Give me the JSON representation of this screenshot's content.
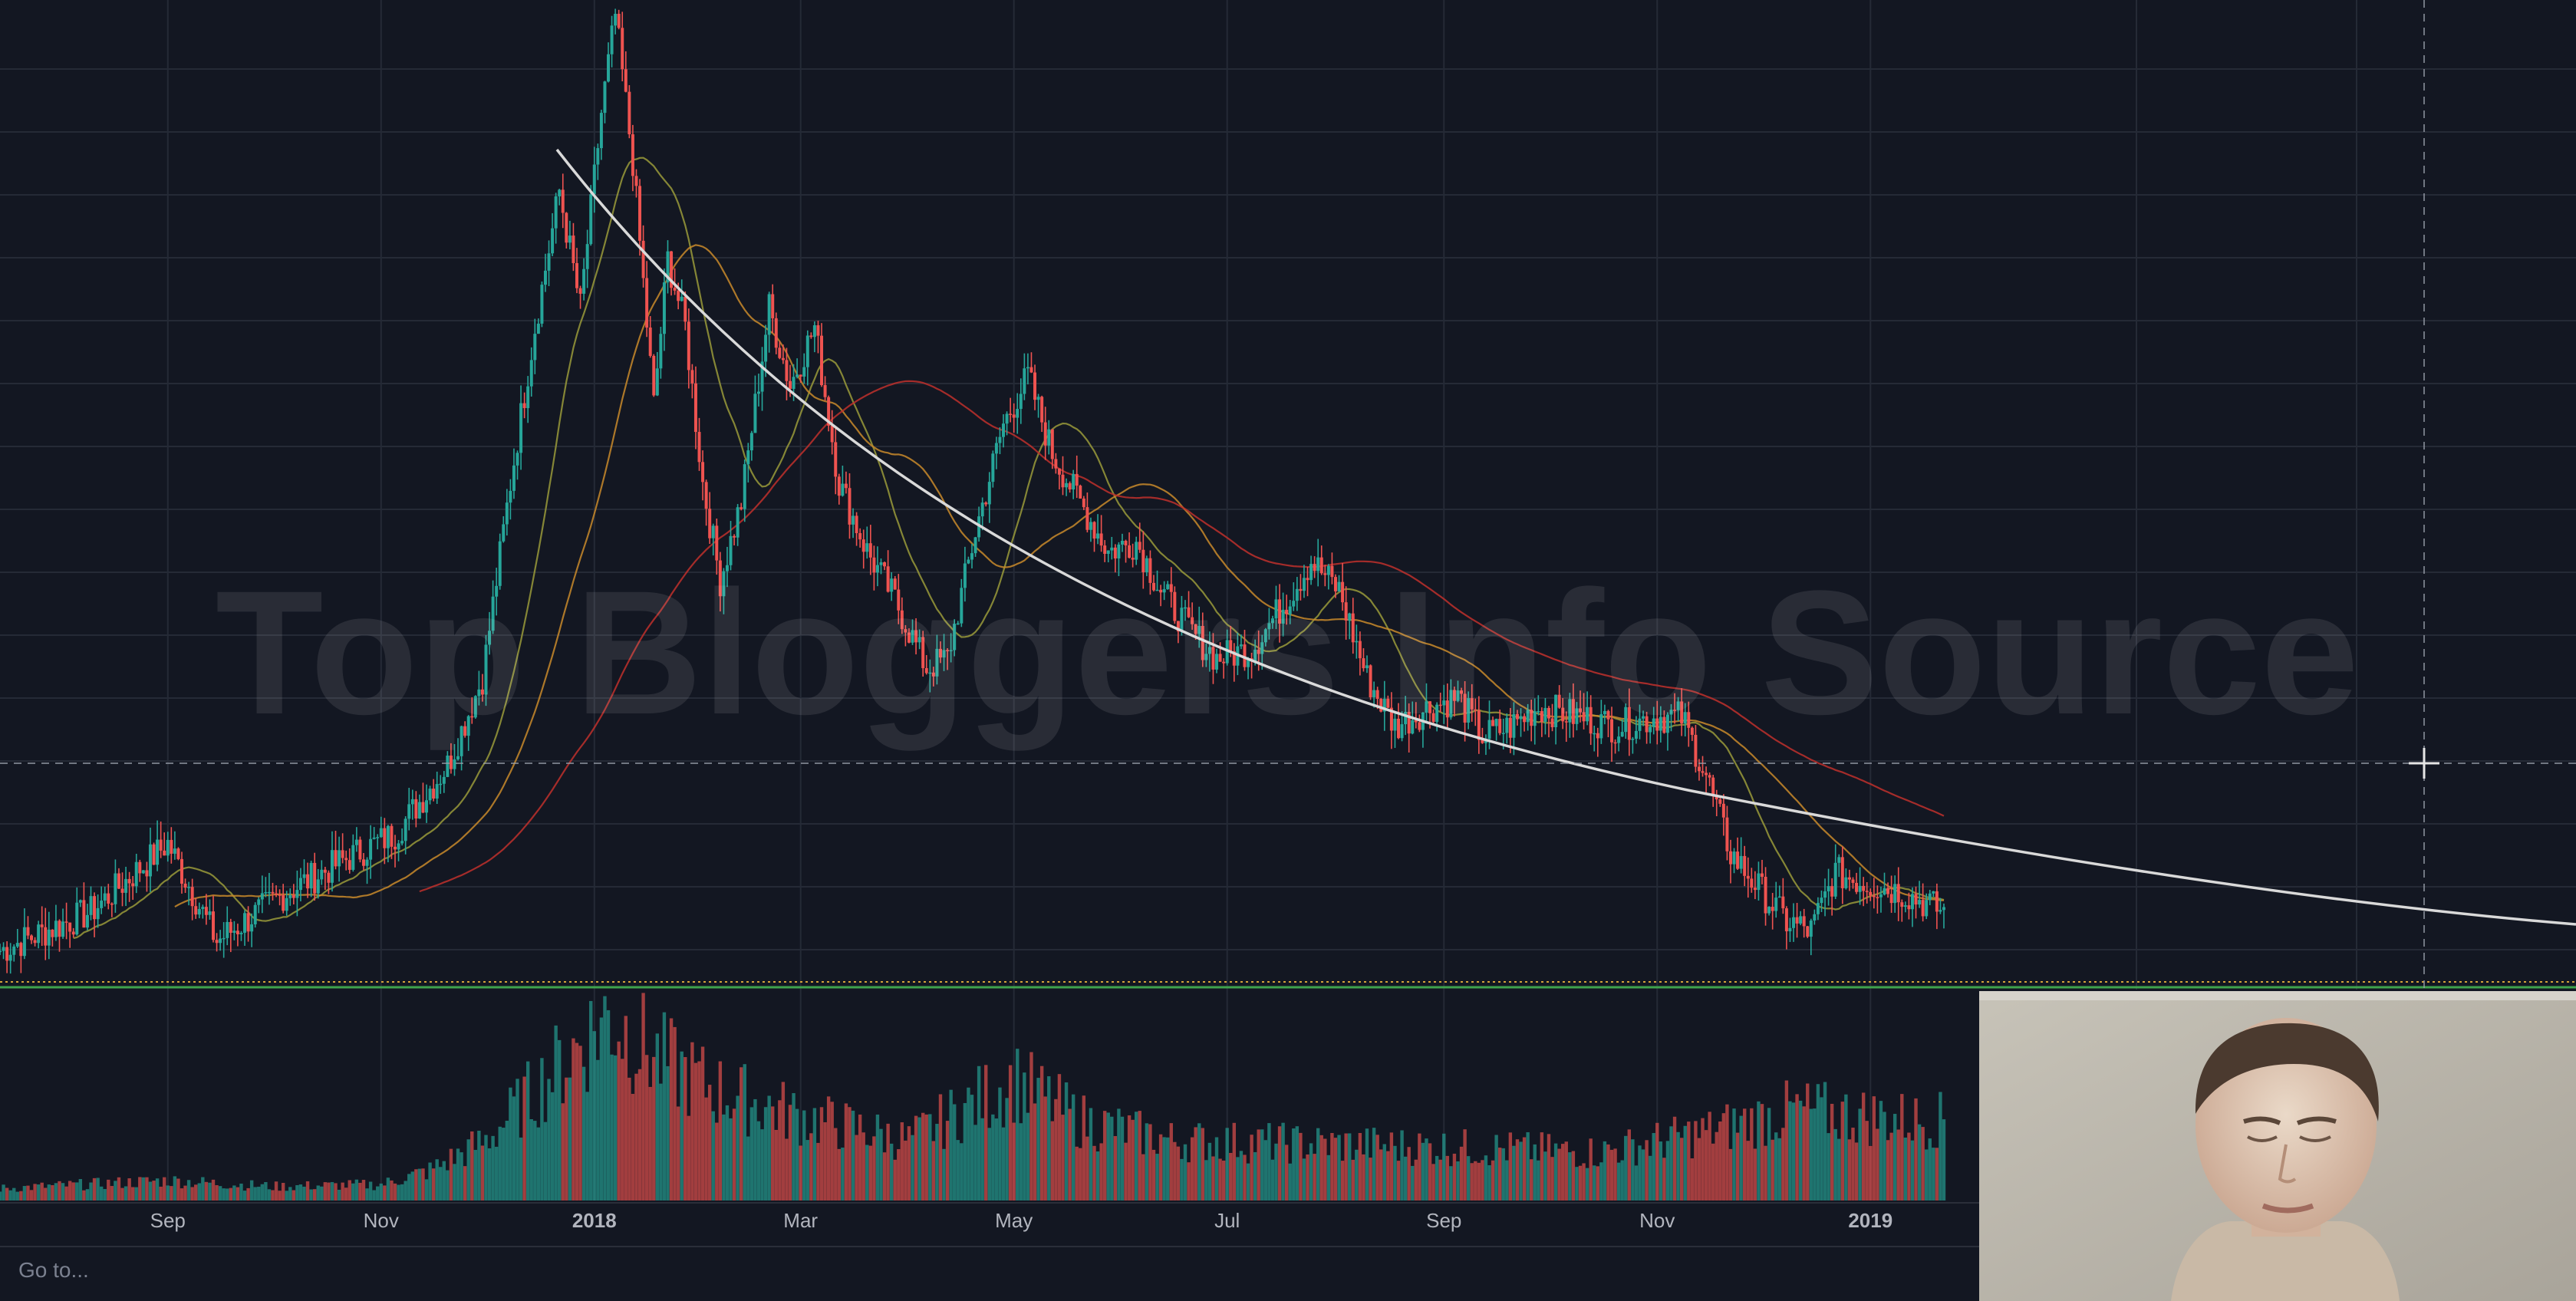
{
  "chart_data": {
    "type": "candlestick",
    "x_tick_labels": [
      "Sep",
      "Nov",
      "2018",
      "Mar",
      "May",
      "Jul",
      "Sep",
      "Nov",
      "2019"
    ],
    "price_path": [
      [
        "2017-07-15",
        0.04
      ],
      [
        "2017-08-10",
        0.08
      ],
      [
        "2017-09-01",
        0.15
      ],
      [
        "2017-09-15",
        0.05
      ],
      [
        "2017-10-05",
        0.1
      ],
      [
        "2017-10-25",
        0.14
      ],
      [
        "2017-11-05",
        0.16
      ],
      [
        "2017-11-20",
        0.23
      ],
      [
        "2017-11-30",
        0.32
      ],
      [
        "2017-12-08",
        0.52
      ],
      [
        "2017-12-15",
        0.68
      ],
      [
        "2017-12-22",
        0.82
      ],
      [
        "2017-12-28",
        0.7
      ],
      [
        "2018-01-03",
        0.9
      ],
      [
        "2018-01-07",
        1.0
      ],
      [
        "2018-01-12",
        0.85
      ],
      [
        "2018-01-18",
        0.6
      ],
      [
        "2018-01-22",
        0.75
      ],
      [
        "2018-01-27",
        0.68
      ],
      [
        "2018-02-01",
        0.52
      ],
      [
        "2018-02-06",
        0.42
      ],
      [
        "2018-02-12",
        0.5
      ],
      [
        "2018-02-20",
        0.7
      ],
      [
        "2018-02-26",
        0.62
      ],
      [
        "2018-03-05",
        0.68
      ],
      [
        "2018-03-12",
        0.52
      ],
      [
        "2018-03-20",
        0.45
      ],
      [
        "2018-03-28",
        0.4
      ],
      [
        "2018-04-06",
        0.33
      ],
      [
        "2018-04-12",
        0.34
      ],
      [
        "2018-04-20",
        0.47
      ],
      [
        "2018-04-28",
        0.58
      ],
      [
        "2018-05-05",
        0.63
      ],
      [
        "2018-05-12",
        0.55
      ],
      [
        "2018-05-20",
        0.5
      ],
      [
        "2018-05-28",
        0.45
      ],
      [
        "2018-06-05",
        0.46
      ],
      [
        "2018-06-12",
        0.41
      ],
      [
        "2018-06-20",
        0.37
      ],
      [
        "2018-06-28",
        0.34
      ],
      [
        "2018-07-08",
        0.35
      ],
      [
        "2018-07-18",
        0.4
      ],
      [
        "2018-07-25",
        0.44
      ],
      [
        "2018-08-02",
        0.41
      ],
      [
        "2018-08-10",
        0.32
      ],
      [
        "2018-08-18",
        0.27
      ],
      [
        "2018-08-28",
        0.29
      ],
      [
        "2018-09-05",
        0.3
      ],
      [
        "2018-09-12",
        0.26
      ],
      [
        "2018-09-20",
        0.27
      ],
      [
        "2018-09-28",
        0.29
      ],
      [
        "2018-10-10",
        0.28
      ],
      [
        "2018-10-20",
        0.27
      ],
      [
        "2018-11-01",
        0.28
      ],
      [
        "2018-11-08",
        0.28
      ],
      [
        "2018-11-15",
        0.22
      ],
      [
        "2018-11-22",
        0.14
      ],
      [
        "2018-12-01",
        0.1
      ],
      [
        "2018-12-08",
        0.07
      ],
      [
        "2018-12-15",
        0.06
      ],
      [
        "2018-12-22",
        0.12
      ],
      [
        "2018-12-30",
        0.11
      ],
      [
        "2019-01-10",
        0.1
      ],
      [
        "2019-01-22",
        0.08
      ]
    ],
    "moving_averages": [
      {
        "color": "#9a9a3a",
        "label": "fast"
      },
      {
        "color": "#c98a2a",
        "label": "medium"
      },
      {
        "color": "#c0302b",
        "label": "slow"
      }
    ],
    "trend_line": {
      "color": "#d9d9d9"
    },
    "support_line": {
      "color": "#3fa34d"
    },
    "volume_path": [
      [
        "2017-07-15",
        0.06
      ],
      [
        "2017-09-01",
        0.1
      ],
      [
        "2017-10-01",
        0.07
      ],
      [
        "2017-11-01",
        0.08
      ],
      [
        "2017-11-15",
        0.15
      ],
      [
        "2017-12-01",
        0.3
      ],
      [
        "2017-12-15",
        0.55
      ],
      [
        "2018-01-05",
        0.92
      ],
      [
        "2018-01-20",
        0.7
      ],
      [
        "2018-02-05",
        0.55
      ],
      [
        "2018-03-01",
        0.42
      ],
      [
        "2018-04-01",
        0.3
      ],
      [
        "2018-05-01",
        0.6
      ],
      [
        "2018-05-20",
        0.4
      ],
      [
        "2018-06-15",
        0.3
      ],
      [
        "2018-08-01",
        0.28
      ],
      [
        "2018-09-15",
        0.26
      ],
      [
        "2018-10-15",
        0.24
      ],
      [
        "2018-11-15",
        0.34
      ],
      [
        "2018-12-10",
        0.45
      ],
      [
        "2019-01-15",
        0.4
      ]
    ],
    "grid": true,
    "colors": {
      "bull": "#26a69a",
      "bear": "#ef5350",
      "background": "#131722",
      "grid": "#2a2e39"
    }
  },
  "watermark": "Top Bloggers Info Source",
  "goto_label": "Go to..."
}
